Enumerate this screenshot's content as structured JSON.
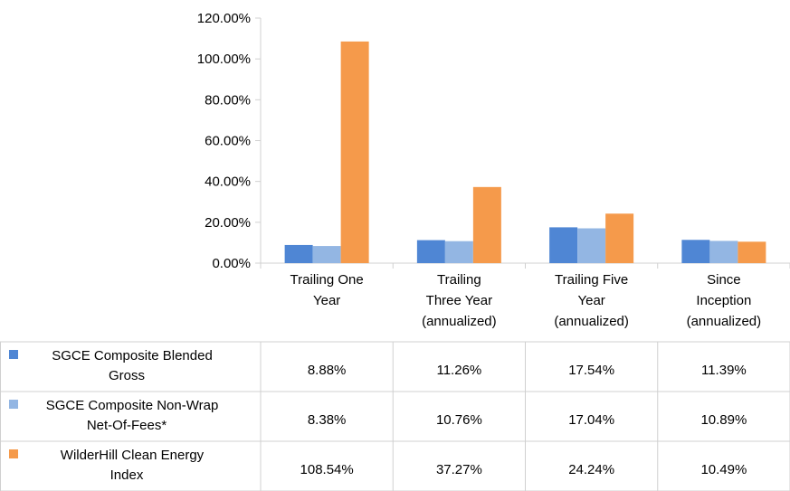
{
  "chart_data": {
    "type": "bar",
    "categories": [
      [
        "Trailing One",
        "Year"
      ],
      [
        "Trailing",
        "Three Year",
        "(annualized)"
      ],
      [
        "Trailing Five",
        "Year",
        "(annualized)"
      ],
      [
        "Since",
        "Inception",
        "(annualized)"
      ]
    ],
    "series": [
      {
        "name": [
          "SGCE Composite Blended",
          "Gross"
        ],
        "color": "#4f86d4",
        "values": [
          8.88,
          11.26,
          17.54,
          11.39
        ],
        "labels": [
          "8.88%",
          "11.26%",
          "17.54%",
          "11.39%"
        ]
      },
      {
        "name": [
          "SGCE Composite Non-Wrap",
          "Net-Of-Fees*"
        ],
        "color": "#93b6e3",
        "values": [
          8.38,
          10.76,
          17.04,
          10.89
        ],
        "labels": [
          "8.38%",
          "10.76%",
          "17.04%",
          "10.89%"
        ]
      },
      {
        "name": [
          "WilderHill Clean Energy",
          "Index"
        ],
        "color": "#f59a4b",
        "values": [
          108.54,
          37.27,
          24.24,
          10.49
        ],
        "labels": [
          "108.54%",
          "37.27%",
          "24.24%",
          "10.49%"
        ]
      }
    ],
    "yticks": [
      0,
      20,
      40,
      60,
      80,
      100,
      120
    ],
    "ytick_labels": [
      "0.00%",
      "20.00%",
      "40.00%",
      "60.00%",
      "80.00%",
      "100.00%",
      "120.00%"
    ],
    "ylim": [
      0,
      120
    ],
    "grid": false,
    "legend": "data-table",
    "title": "",
    "xlabel": "",
    "ylabel": ""
  }
}
